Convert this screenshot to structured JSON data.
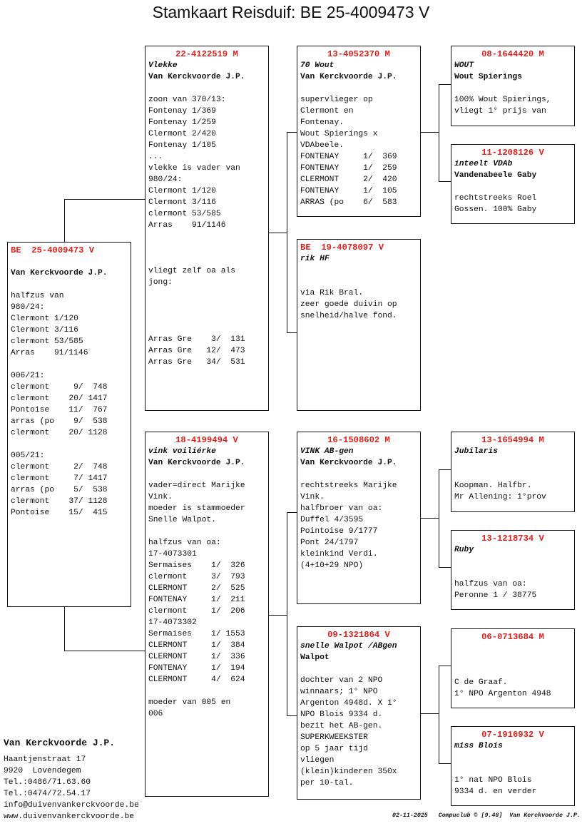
{
  "title": "Stamkaart Reisduif: BE  25-4009473 V",
  "boxes": {
    "main": {
      "ring": "BE  25-4009473 V",
      "ring_center": false,
      "name": "",
      "owner": "Van Kerckvoorde J.P.",
      "notes": [
        "halfzus van",
        "980/24:",
        "Clermont 1/120",
        "Clermont 3/116",
        "clermont 53/585",
        "Arras    91/1146",
        "",
        "006/21:",
        "clermont     9/  748",
        "clermont    20/ 1417",
        "Pontoise    11/  767",
        "arras (po    9/  538",
        "clermont    20/ 1128",
        "",
        "005/21:",
        "clermont     2/  748",
        "clermont     7/ 1417",
        "arras (po    5/  538",
        "clermont    37/ 1128",
        "Pontoise    15/  415"
      ]
    },
    "sire": {
      "ring": "22-4122519 M",
      "ring_center": true,
      "name": "Vlekke",
      "owner": "Van Kerckvoorde J.P.",
      "notes": [
        "zoon van 370/13:",
        "Fontenay 1/369",
        "Fontenay 1/259",
        "Clermont 2/420",
        "Fontenay 1/105",
        "...",
        "vlekke is vader van",
        "980/24:",
        "Clermont 1/120",
        "Clermont 3/116",
        "clermont 53/585",
        "Arras    91/1146",
        "",
        "",
        "",
        "vliegt zelf oa als",
        "jong:",
        "",
        "",
        "",
        "",
        "Arras Gre    3/  131",
        "Arras Gre   12/  473",
        "Arras Gre   34/  531"
      ]
    },
    "dam": {
      "ring": "18-4199494 V",
      "ring_center": true,
      "name": "vink voiliérke",
      "owner": "Van Kerckvoorde J.P.",
      "notes": [
        "vader=direct Marijke",
        "Vink.",
        "moeder is stammoeder",
        "Snelle Walpot.",
        "",
        "halfzus van oa:",
        "17-4073301",
        "Sermaises    1/  326",
        "clermont     3/  793",
        "CLERMONT     2/  525",
        "FONTENAY     1/  211",
        "clermont     1/  206",
        "17-4073302",
        "Sermaises    1/ 1553",
        "CLERMONT     1/  384",
        "CLERMONT     1/  336",
        "FONTENAY     1/  194",
        "CLERMONT     4/  624",
        "",
        "moeder van 005 en",
        "006"
      ]
    },
    "ss": {
      "ring": "13-4052370 M",
      "ring_center": true,
      "name": "70 Wout",
      "owner": "Van Kerckvoorde J.P.",
      "notes": [
        "supervlieger op",
        "Clermont en",
        "Fontenay.",
        "Wout Spierings x",
        "VDAbeele.",
        "FONTENAY     1/  369",
        "FONTENAY     1/  259",
        "CLERMONT     2/  420",
        "FONTENAY     1/  105",
        "ARRAS (po    6/  583"
      ]
    },
    "sd": {
      "ring": "BE  19-4078097 V",
      "ring_center": false,
      "name": "rik HF",
      "owner": "",
      "notes": [
        "via Rik Bral.",
        "zeer goede duivin op",
        "snelheid/halve fond."
      ]
    },
    "ds": {
      "ring": "16-1508602 M",
      "ring_center": true,
      "name": "VINK AB-gen",
      "owner": "Van Kerckvoorde J.P.",
      "notes": [
        "rechtstreeks Marijke",
        "Vink.",
        "halfbroer van oa:",
        "Duffel 4/3595",
        "Pointoise 9/1777",
        "Pont 24/1797",
        "kleinkind Verdi.",
        "(4+10+29 NPO)"
      ]
    },
    "dd": {
      "ring": "09-1321864 V",
      "ring_center": true,
      "name": "snelle Walpot /ABgen",
      "owner": "Walpot",
      "notes": [
        "dochter van 2 NPO",
        "winnaars; 1° NPO",
        "Argenton 4948d. X 1°",
        "NPO Blois 9334 d.",
        "bezit het AB-gen.",
        "SUPERKWEEKSTER",
        "op 5 jaar tijd",
        "vliegen",
        "(klein)kinderen 350x",
        "per 10-tal."
      ]
    },
    "sss": {
      "ring": "08-1644420 M",
      "ring_center": true,
      "name": "WOUT",
      "owner": "Wout Spierings",
      "notes": [
        "100% Wout Spierings,",
        "vliegt 1° prijs van"
      ]
    },
    "ssd": {
      "ring": "11-1208126 V",
      "ring_center": true,
      "name": "inteelt VDAb",
      "owner": "Vandenabeele Gaby",
      "notes": [
        "rechtstreeks Roel",
        "Gossen. 100% Gaby"
      ]
    },
    "dss": {
      "ring": "13-1654994 M",
      "ring_center": true,
      "name": "Jubilaris",
      "owner": "",
      "notes": [
        "Koopman. Halfbr.",
        "Mr Allening: 1°prov"
      ]
    },
    "dsd": {
      "ring": "13-1218734 V",
      "ring_center": true,
      "name": "Ruby",
      "owner": "",
      "notes": [
        "halfzus van oa:",
        "Peronne 1 / 38775"
      ]
    },
    "dds": {
      "ring": "06-0713684 M",
      "ring_center": true,
      "name": "",
      "owner": "",
      "notes": [
        "C de Graaf.",
        "1° NPO Argenton 4948"
      ]
    },
    "ddd": {
      "ring": "07-1916932 V",
      "ring_center": true,
      "name": "miss Blois",
      "owner": "",
      "notes": [
        "1° nat NPO Blois",
        "9334 d. en verder"
      ]
    }
  },
  "address": {
    "name": "Van Kerckvoorde J.P.",
    "lines": [
      "Haantjenstraat 17",
      "9920  Lovendegem",
      "Tel.:0486/71.63.60",
      "Tel.:0474/72.54.17",
      "info@duivenvankerckvoorde.be",
      "www.duivenvankerckvoorde.be"
    ]
  },
  "footer": "02-11-2025   Compuclub © [9.48]  Van Kerckvoorde J.P.",
  "colors": {
    "ring": "#e0201c",
    "line": "#111111"
  }
}
